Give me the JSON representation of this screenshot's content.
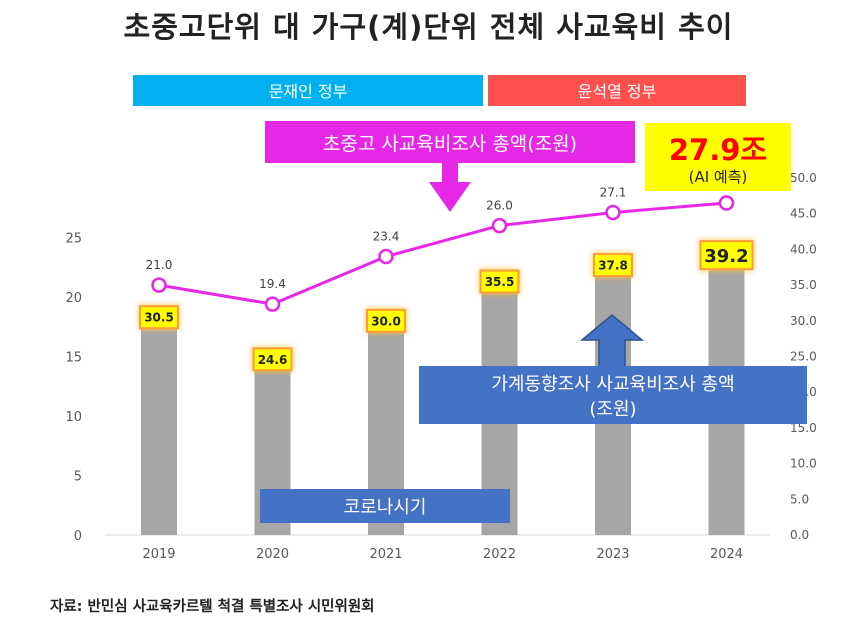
{
  "chart_data": {
    "type": "bar",
    "title": "초중고단위 대 가구(계)단위 전체 사교육비 추이",
    "categories": [
      "2019",
      "2020",
      "2021",
      "2022",
      "2023",
      "2024"
    ],
    "bar_series": {
      "name": "가계동향조사 사교육비조사 총액(조원)",
      "axis": "right",
      "values": [
        30.5,
        24.6,
        30.0,
        35.5,
        37.8,
        39.2
      ],
      "labels": [
        "30.5",
        "24.6",
        "30.0",
        "35.5",
        "37.8",
        "39.2"
      ],
      "color": "#a6a6a6"
    },
    "line_series": {
      "name": "초중고 사교육비조사 총액(조원)",
      "axis": "left",
      "values": [
        21.0,
        19.4,
        23.4,
        26.0,
        27.1,
        27.9
      ],
      "labels": [
        "21.0",
        "19.4",
        "23.4",
        "26.0",
        "27.1",
        ""
      ],
      "color": "#e628e6"
    },
    "left_axis": {
      "ticks": [
        "0",
        "5",
        "10",
        "15",
        "20",
        "25"
      ],
      "ylim": [
        0,
        30
      ]
    },
    "right_axis": {
      "ticks": [
        "0.0",
        "5.0",
        "10.0",
        "15.0",
        "20.0",
        "25.0",
        "30.0",
        "35.0",
        "40.0",
        "45.0",
        "50.0"
      ],
      "ylim": [
        0,
        50
      ]
    },
    "grid": false,
    "annotations": {
      "moon_gov": "문재인 정부",
      "yoon_gov": "윤석열 정부",
      "line_label": "초중고 사교육비조사 총액(조원)",
      "ai_value": "27.9조",
      "ai_note": "(AI 예측)",
      "bar_label_line1": "가계동향조사 사교육비조사 총액",
      "bar_label_line2": "(조원)",
      "covid": "코로나시기"
    },
    "colors": {
      "moon": "#00b0f0",
      "yoon": "#ff5050",
      "line_box": "#e628e6",
      "ai_box": "#ffff00",
      "ai_text": "#ff0000",
      "bar_box": "#4472c4",
      "covid_box": "#4472c4",
      "bar_label_bg": "#ffff00"
    }
  },
  "footer": {
    "source": "자료: 반민심 사교육카르텔 척결 특별조사 시민위원회"
  }
}
